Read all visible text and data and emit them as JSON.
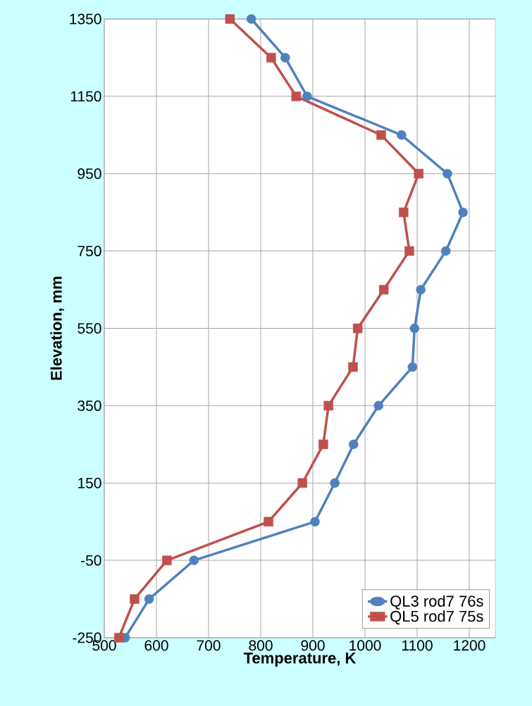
{
  "chart_data": {
    "type": "line",
    "xlabel": "Temperature, K",
    "ylabel": "Elevation, mm",
    "xlim": [
      500,
      1250
    ],
    "xticks": [
      500,
      600,
      700,
      800,
      900,
      1000,
      1100,
      1200
    ],
    "ylim": [
      -250,
      1350
    ],
    "yticks": [
      -250,
      -50,
      150,
      350,
      550,
      750,
      950,
      1150,
      1350
    ],
    "grid": true,
    "legend": "bottom right",
    "series": [
      {
        "name": "QL3 rod7 76s",
        "color": "#4f81bd",
        "marker": "circle",
        "x": [
          782,
          847,
          889,
          1070,
          1158,
          1188,
          1155,
          1107,
          1095,
          1091,
          1026,
          978,
          942,
          904,
          672,
          586,
          540
        ],
        "values": [
          1350,
          1250,
          1150,
          1050,
          950,
          850,
          750,
          650,
          550,
          450,
          350,
          250,
          150,
          50,
          -50,
          -150,
          -250
        ]
      },
      {
        "name": "QL5 rod7 75s",
        "color": "#c0504d",
        "marker": "square",
        "x": [
          741,
          820,
          868,
          1031,
          1103,
          1074,
          1085,
          1036,
          986,
          977,
          930,
          920,
          880,
          815,
          620,
          558,
          528
        ],
        "values": [
          1350,
          1250,
          1150,
          1050,
          950,
          850,
          750,
          650,
          550,
          450,
          350,
          250,
          150,
          50,
          -50,
          -150,
          -250
        ]
      }
    ]
  }
}
